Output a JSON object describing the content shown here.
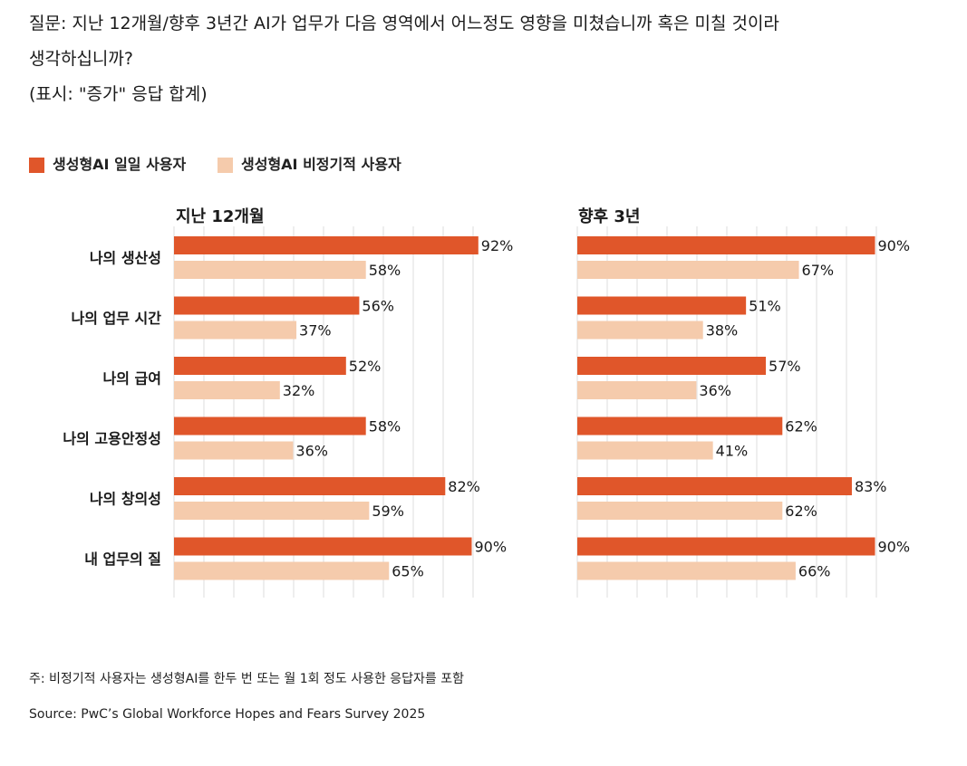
{
  "question": {
    "line1": "질문: 지난 12개월/향후 3년간 AI가 업무가 다음 영역에서 어느정도 영향을 미쳤습니까 혹은 미칠 것이라",
    "line2": "생각하십니까?",
    "line3": "(표시: \"증가\" 응답 합계)"
  },
  "colors": {
    "daily": "#e0562a",
    "occasional": "#f5cbac",
    "grid": "#e6e6e6",
    "text": "#1a1a1a"
  },
  "chart_data": {
    "type": "bar",
    "orientation": "horizontal",
    "legend_position": "top-left",
    "legend": [
      "생성형AI 일일 사용자",
      "생성형AI 비정기적 사용자"
    ],
    "categories": [
      "나의 생산성",
      "나의 업무 시간",
      "나의 급여",
      "나의 고용안정성",
      "나의 창의성",
      "내 업무의 질"
    ],
    "panels": [
      {
        "title": "지난 12개월",
        "series": [
          {
            "name": "생성형AI 일일 사용자",
            "values": [
              92,
              56,
              52,
              58,
              82,
              90
            ],
            "labels": [
              "92%",
              "56%",
              "52%",
              "58%",
              "82%",
              "90%"
            ]
          },
          {
            "name": "생성형AI 비정기적 사용자",
            "values": [
              58,
              37,
              32,
              36,
              59,
              65
            ],
            "labels": [
              "58%",
              "37%",
              "32%",
              "36%",
              "59%",
              "65%"
            ]
          }
        ],
        "xlim": [
          0,
          100
        ]
      },
      {
        "title": "향후 3년",
        "series": [
          {
            "name": "생성형AI 일일 사용자",
            "values": [
              90,
              51,
              57,
              62,
              83,
              90
            ],
            "labels": [
              "90%",
              "51%",
              "57%",
              "62%",
              "83%",
              "90%"
            ]
          },
          {
            "name": "생성형AI 비정기적 사용자",
            "values": [
              67,
              38,
              36,
              41,
              62,
              66
            ],
            "labels": [
              "67%",
              "38%",
              "36%",
              "41%",
              "62%",
              "66%"
            ]
          }
        ],
        "xlim": [
          0,
          100
        ]
      }
    ]
  },
  "footnote": "주: 비정기적 사용자는 생성형AI를 한두 번 또는 월 1회 정도 사용한 응답자를 포함",
  "source": "Source: PwC’s Global Workforce Hopes and Fears Survey 2025"
}
